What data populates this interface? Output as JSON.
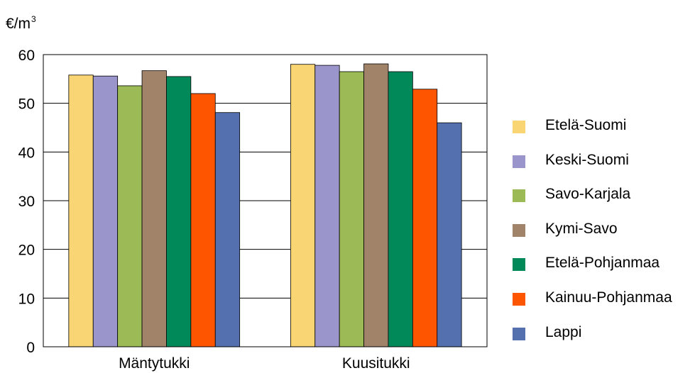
{
  "chart_data": {
    "type": "bar",
    "unit_label": {
      "base": "€/m",
      "sup": "3"
    },
    "categories": [
      "Mäntytukki",
      "Kuusitukki"
    ],
    "series": [
      {
        "name": "Etelä-Suomi",
        "color": "#f9d673",
        "values": [
          55.8,
          58.0
        ]
      },
      {
        "name": "Keski-Suomi",
        "color": "#9a96cb",
        "values": [
          55.6,
          57.8
        ]
      },
      {
        "name": "Savo-Karjala",
        "color": "#9cbb56",
        "values": [
          53.6,
          56.5
        ]
      },
      {
        "name": "Kymi-Savo",
        "color": "#a18369",
        "values": [
          56.7,
          58.1
        ]
      },
      {
        "name": "Etelä-Pohjanmaa",
        "color": "#01895a",
        "values": [
          55.5,
          56.5
        ]
      },
      {
        "name": "Kainuu-Pohjanmaa",
        "color": "#fe5500",
        "values": [
          52.0,
          52.9
        ]
      },
      {
        "name": "Lappi",
        "color": "#5570ae",
        "values": [
          48.1,
          46.0
        ]
      }
    ],
    "yticks": [
      "0",
      "10",
      "20",
      "30",
      "40",
      "50",
      "60"
    ],
    "ylim": [
      0,
      60
    ],
    "grid": true,
    "legend_position": "right"
  }
}
